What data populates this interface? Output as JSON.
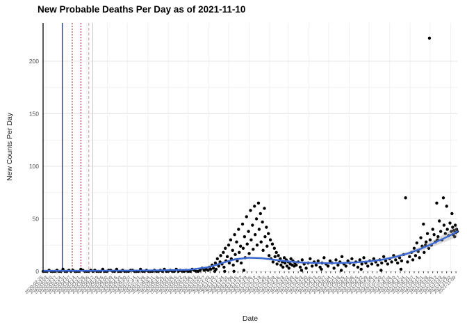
{
  "title": "New Probable Deaths Per Day as of 2021-11-10",
  "chart_data": {
    "type": "scatter",
    "title": "New Probable Deaths Per Day as of 2021-11-10",
    "xlabel": "Date",
    "ylabel": "New Counts Per Day",
    "x_start_date": "2020-02-25",
    "x_end_date": "2021-11-10",
    "x_total_days": 625,
    "ylim": [
      0,
      235
    ],
    "y_ticks": [
      0,
      50,
      100,
      150,
      200
    ],
    "y_minor_ticks": [
      25,
      75,
      125,
      175
    ],
    "grid_on": true,
    "legend": "none",
    "point_color": "#000000",
    "smooth_color": "#3b6ad6",
    "ribbon_color": "#999999",
    "grid_color": "#e4e4e4",
    "minor_grid_color": "#f1f1f1",
    "axis_line_color": "#000000",
    "tick_label_color": "#4a4a4a",
    "x_tick_step_days": 7,
    "x_tick_dates": [
      "2020-02-25",
      "2020-03-03",
      "2020-03-10",
      "2020-03-17",
      "2020-03-24",
      "2020-03-31",
      "2020-04-07",
      "2020-04-14",
      "2020-04-21",
      "2020-04-28",
      "2020-05-05",
      "2020-05-12",
      "2020-05-19",
      "2020-05-26",
      "2020-06-02",
      "2020-06-09",
      "2020-06-16",
      "2020-06-23",
      "2020-06-30",
      "2020-07-07",
      "2020-07-14",
      "2020-07-21",
      "2020-07-28",
      "2020-08-04",
      "2020-08-11",
      "2020-08-18",
      "2020-08-25",
      "2020-09-01",
      "2020-09-08",
      "2020-09-15",
      "2020-09-22",
      "2020-09-29",
      "2020-10-06",
      "2020-10-13",
      "2020-10-20",
      "2020-10-27",
      "2020-11-03",
      "2020-11-10",
      "2020-11-17",
      "2020-11-24",
      "2020-12-01",
      "2020-12-08",
      "2020-12-15",
      "2020-12-22",
      "2020-12-29",
      "2021-01-05",
      "2021-01-12",
      "2021-01-19",
      "2021-01-26",
      "2021-02-02",
      "2021-02-09",
      "2021-02-16",
      "2021-02-23",
      "2021-03-02",
      "2021-03-09",
      "2021-03-16",
      "2021-03-23",
      "2021-03-30",
      "2021-04-06",
      "2021-04-13",
      "2021-04-20",
      "2021-04-27",
      "2021-05-04",
      "2021-05-11",
      "2021-05-18",
      "2021-05-25",
      "2021-06-01",
      "2021-06-08",
      "2021-06-15",
      "2021-06-22",
      "2021-06-29",
      "2021-07-06",
      "2021-07-13",
      "2021-07-20",
      "2021-07-27",
      "2021-08-03",
      "2021-08-10",
      "2021-08-17",
      "2021-08-24",
      "2021-08-31",
      "2021-09-07",
      "2021-09-14",
      "2021-09-21",
      "2021-09-28",
      "2021-10-05",
      "2021-10-12",
      "2021-10-19",
      "2021-10-26",
      "2021-11-02",
      "2021-11-09"
    ],
    "x_grid_days": [
      5,
      36,
      66,
      97,
      127,
      158,
      189,
      219,
      250,
      280,
      311,
      342,
      370,
      401,
      431,
      462,
      492,
      523,
      554,
      584,
      615
    ],
    "vlines": [
      {
        "day": 29,
        "color": "#2233bb",
        "width": 1.4,
        "dash": ""
      },
      {
        "day": 44,
        "color": "#992222",
        "width": 1,
        "dash": "2,2"
      },
      {
        "day": 57,
        "color": "#992222",
        "width": 1,
        "dash": "2,2"
      },
      {
        "day": 69,
        "color": "#d09090",
        "width": 1,
        "dash": "4,3"
      },
      {
        "day": 75,
        "color": "#c9c9c9",
        "width": 1,
        "dash": ""
      }
    ],
    "points": [
      [
        0,
        0
      ],
      [
        3,
        0
      ],
      [
        6,
        0
      ],
      [
        9,
        1
      ],
      [
        12,
        0
      ],
      [
        15,
        0
      ],
      [
        18,
        0
      ],
      [
        21,
        1
      ],
      [
        24,
        0
      ],
      [
        27,
        0
      ],
      [
        30,
        2
      ],
      [
        33,
        0
      ],
      [
        36,
        0
      ],
      [
        39,
        1
      ],
      [
        42,
        0
      ],
      [
        45,
        1
      ],
      [
        48,
        0
      ],
      [
        51,
        0
      ],
      [
        54,
        0
      ],
      [
        57,
        2
      ],
      [
        60,
        1
      ],
      [
        63,
        0
      ],
      [
        66,
        0
      ],
      [
        69,
        0
      ],
      [
        72,
        1
      ],
      [
        75,
        0
      ],
      [
        78,
        1
      ],
      [
        81,
        0
      ],
      [
        84,
        0
      ],
      [
        87,
        0
      ],
      [
        90,
        2
      ],
      [
        93,
        0
      ],
      [
        96,
        0
      ],
      [
        99,
        1
      ],
      [
        102,
        1
      ],
      [
        105,
        0
      ],
      [
        108,
        0
      ],
      [
        111,
        2
      ],
      [
        114,
        0
      ],
      [
        117,
        0
      ],
      [
        120,
        1
      ],
      [
        123,
        0
      ],
      [
        126,
        0
      ],
      [
        129,
        0
      ],
      [
        132,
        1
      ],
      [
        135,
        1
      ],
      [
        138,
        0
      ],
      [
        141,
        0
      ],
      [
        144,
        0
      ],
      [
        147,
        2
      ],
      [
        150,
        0
      ],
      [
        153,
        0
      ],
      [
        156,
        1
      ],
      [
        159,
        0
      ],
      [
        162,
        0
      ],
      [
        165,
        0
      ],
      [
        168,
        1
      ],
      [
        171,
        0
      ],
      [
        174,
        0
      ],
      [
        177,
        1
      ],
      [
        180,
        0
      ],
      [
        183,
        2
      ],
      [
        186,
        0
      ],
      [
        189,
        0
      ],
      [
        192,
        1
      ],
      [
        195,
        0
      ],
      [
        198,
        0
      ],
      [
        201,
        2
      ],
      [
        204,
        0
      ],
      [
        207,
        1
      ],
      [
        210,
        0
      ],
      [
        213,
        0
      ],
      [
        216,
        1
      ],
      [
        219,
        0
      ],
      [
        222,
        0
      ],
      [
        225,
        2
      ],
      [
        228,
        1
      ],
      [
        231,
        0
      ],
      [
        234,
        0
      ],
      [
        237,
        1
      ],
      [
        240,
        3
      ],
      [
        243,
        1
      ],
      [
        246,
        2
      ],
      [
        249,
        1
      ],
      [
        251,
        4
      ],
      [
        253,
        2
      ],
      [
        255,
        6
      ],
      [
        257,
        3
      ],
      [
        259,
        0
      ],
      [
        260,
        8
      ],
      [
        261,
        2
      ],
      [
        263,
        12
      ],
      [
        265,
        5
      ],
      [
        267,
        9
      ],
      [
        268,
        15
      ],
      [
        270,
        7
      ],
      [
        272,
        18
      ],
      [
        273,
        4
      ],
      [
        274,
        0
      ],
      [
        275,
        22
      ],
      [
        276,
        10
      ],
      [
        278,
        14
      ],
      [
        280,
        25
      ],
      [
        281,
        8
      ],
      [
        283,
        30
      ],
      [
        284,
        12
      ],
      [
        286,
        20
      ],
      [
        287,
        6
      ],
      [
        288,
        0
      ],
      [
        289,
        35
      ],
      [
        290,
        16
      ],
      [
        292,
        28
      ],
      [
        293,
        10
      ],
      [
        295,
        40
      ],
      [
        296,
        18
      ],
      [
        298,
        24
      ],
      [
        299,
        8
      ],
      [
        301,
        45
      ],
      [
        302,
        22
      ],
      [
        303,
        1
      ],
      [
        304,
        33
      ],
      [
        305,
        13
      ],
      [
        307,
        52
      ],
      [
        308,
        26
      ],
      [
        310,
        38
      ],
      [
        311,
        17
      ],
      [
        313,
        58
      ],
      [
        314,
        30
      ],
      [
        316,
        44
      ],
      [
        317,
        21
      ],
      [
        319,
        62
      ],
      [
        320,
        35
      ],
      [
        322,
        50
      ],
      [
        323,
        25
      ],
      [
        325,
        65
      ],
      [
        326,
        40
      ],
      [
        328,
        55
      ],
      [
        329,
        28
      ],
      [
        331,
        47
      ],
      [
        332,
        20
      ],
      [
        334,
        60
      ],
      [
        335,
        33
      ],
      [
        337,
        42
      ],
      [
        338,
        24
      ],
      [
        340,
        36
      ],
      [
        341,
        15
      ],
      [
        343,
        30
      ],
      [
        344,
        12
      ],
      [
        346,
        26
      ],
      [
        347,
        9
      ],
      [
        349,
        22
      ],
      [
        350,
        14
      ],
      [
        352,
        18
      ],
      [
        353,
        7
      ],
      [
        355,
        15
      ],
      [
        356,
        10
      ],
      [
        358,
        12
      ],
      [
        359,
        6
      ],
      [
        361,
        9
      ],
      [
        362,
        4
      ],
      [
        364,
        13
      ],
      [
        365,
        8
      ],
      [
        367,
        11
      ],
      [
        368,
        5
      ],
      [
        370,
        9
      ],
      [
        371,
        3
      ],
      [
        373,
        7
      ],
      [
        374,
        12
      ],
      [
        376,
        6
      ],
      [
        377,
        10
      ],
      [
        379,
        5
      ],
      [
        380,
        8
      ],
      [
        382,
        6
      ],
      [
        385,
        9
      ],
      [
        388,
        4
      ],
      [
        390,
        1
      ],
      [
        391,
        11
      ],
      [
        394,
        7
      ],
      [
        397,
        3
      ],
      [
        400,
        8
      ],
      [
        403,
        12
      ],
      [
        406,
        5
      ],
      [
        409,
        9
      ],
      [
        412,
        6
      ],
      [
        415,
        10
      ],
      [
        418,
        4
      ],
      [
        420,
        2
      ],
      [
        421,
        8
      ],
      [
        424,
        13
      ],
      [
        427,
        7
      ],
      [
        430,
        5
      ],
      [
        433,
        10
      ],
      [
        436,
        8
      ],
      [
        439,
        3
      ],
      [
        442,
        11
      ],
      [
        445,
        6
      ],
      [
        448,
        9
      ],
      [
        450,
        1
      ],
      [
        451,
        14
      ],
      [
        454,
        7
      ],
      [
        457,
        5
      ],
      [
        460,
        10
      ],
      [
        463,
        8
      ],
      [
        466,
        12
      ],
      [
        469,
        6
      ],
      [
        472,
        9
      ],
      [
        475,
        4
      ],
      [
        478,
        11
      ],
      [
        480,
        2
      ],
      [
        481,
        7
      ],
      [
        484,
        13
      ],
      [
        487,
        8
      ],
      [
        490,
        5
      ],
      [
        493,
        10
      ],
      [
        496,
        7
      ],
      [
        499,
        12
      ],
      [
        502,
        9
      ],
      [
        505,
        6
      ],
      [
        508,
        11
      ],
      [
        510,
        1
      ],
      [
        511,
        8
      ],
      [
        514,
        14
      ],
      [
        517,
        10
      ],
      [
        520,
        7
      ],
      [
        523,
        12
      ],
      [
        526,
        9
      ],
      [
        529,
        15
      ],
      [
        532,
        11
      ],
      [
        535,
        8
      ],
      [
        538,
        13
      ],
      [
        540,
        2
      ],
      [
        541,
        10
      ],
      [
        544,
        16
      ],
      [
        547,
        70
      ],
      [
        550,
        9
      ],
      [
        553,
        14
      ],
      [
        556,
        18
      ],
      [
        558,
        11
      ],
      [
        560,
        22
      ],
      [
        562,
        15
      ],
      [
        564,
        27
      ],
      [
        566,
        19
      ],
      [
        568,
        13
      ],
      [
        570,
        32
      ],
      [
        572,
        24
      ],
      [
        574,
        45
      ],
      [
        575,
        18
      ],
      [
        577,
        25
      ],
      [
        578,
        28
      ],
      [
        580,
        36
      ],
      [
        582,
        22
      ],
      [
        583,
        222
      ],
      [
        584,
        30
      ],
      [
        586,
        25
      ],
      [
        588,
        40
      ],
      [
        590,
        35
      ],
      [
        592,
        28
      ],
      [
        594,
        65
      ],
      [
        595,
        30
      ],
      [
        596,
        33
      ],
      [
        598,
        48
      ],
      [
        600,
        38
      ],
      [
        602,
        30
      ],
      [
        604,
        70
      ],
      [
        605,
        44
      ],
      [
        607,
        36
      ],
      [
        609,
        62
      ],
      [
        610,
        40
      ],
      [
        612,
        34
      ],
      [
        614,
        46
      ],
      [
        616,
        38
      ],
      [
        617,
        55
      ],
      [
        618,
        42
      ],
      [
        619,
        35
      ],
      [
        620,
        39
      ],
      [
        621,
        33
      ],
      [
        622,
        44
      ],
      [
        623,
        37
      ],
      [
        624,
        40
      ],
      [
        625,
        38
      ]
    ],
    "smooth_line": [
      [
        0,
        0.5,
        0.8
      ],
      [
        60,
        0.5,
        0.6
      ],
      [
        120,
        0.7,
        0.6
      ],
      [
        180,
        1,
        0.6
      ],
      [
        220,
        1.5,
        0.7
      ],
      [
        250,
        4,
        0.9
      ],
      [
        270,
        8,
        1.1
      ],
      [
        290,
        11.5,
        1.2
      ],
      [
        310,
        13,
        1.2
      ],
      [
        330,
        12.5,
        1.2
      ],
      [
        350,
        11,
        1.1
      ],
      [
        370,
        9.5,
        1.1
      ],
      [
        390,
        8.5,
        1
      ],
      [
        410,
        8,
        1
      ],
      [
        430,
        7.8,
        1
      ],
      [
        450,
        8,
        1
      ],
      [
        470,
        8.5,
        1
      ],
      [
        490,
        9.5,
        1.1
      ],
      [
        510,
        11,
        1.2
      ],
      [
        530,
        13.5,
        1.4
      ],
      [
        550,
        17,
        1.7
      ],
      [
        570,
        21.5,
        2.2
      ],
      [
        590,
        27,
        3
      ],
      [
        610,
        33,
        4
      ],
      [
        625,
        38,
        5.5
      ]
    ]
  }
}
